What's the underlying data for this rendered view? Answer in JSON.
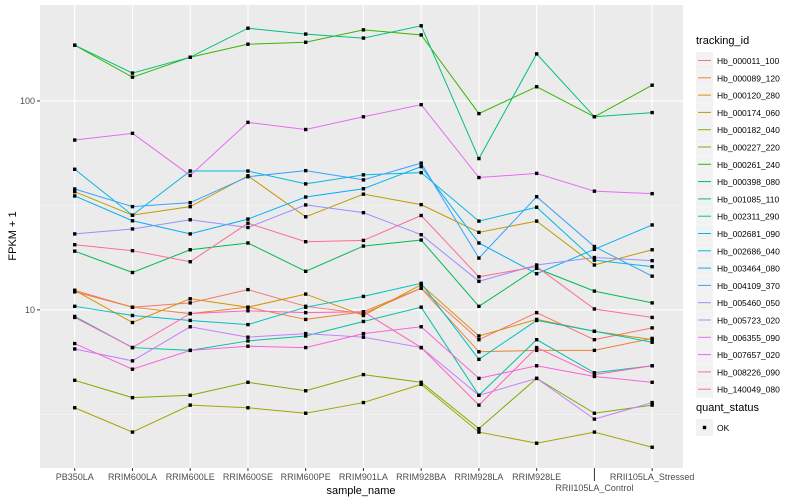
{
  "chart_data": {
    "type": "line",
    "title": "",
    "xlabel": "sample_name",
    "ylabel": "FPKM + 1",
    "y_scale": "log10",
    "ylim": [
      1.75,
      288
    ],
    "y_ticks": [
      10,
      100
    ],
    "y_tick_labels": [
      "10",
      "100"
    ],
    "grid": true,
    "legend_position": "right",
    "legend_title": "tracking_id",
    "shape_legend_title": "quant_status",
    "shape_legend_items": [
      "OK"
    ],
    "categories": [
      "PB350LA",
      "RRIM600LA",
      "RRIM600LE",
      "RRIM600SE",
      "RRIM600PE",
      "RRIM901LA",
      "RRIM928BA",
      "RRIM928LA",
      "RRIM928LE",
      "RRII105LA_Control",
      "RRII105LA_Stressed"
    ],
    "series": [
      {
        "name": "Hb_000011_100",
        "color": "#F8766D",
        "values": [
          12.4,
          10.3,
          10.8,
          12.5,
          10.4,
          9.6,
          12.7,
          7.2,
          9.7,
          7.2,
          8.2
        ]
      },
      {
        "name": "Hb_000089_120",
        "color": "#EA8331",
        "values": [
          12.2,
          10.3,
          9.6,
          10.3,
          9.0,
          9.8,
          12.7,
          6.3,
          6.4,
          6.4,
          7.3
        ]
      },
      {
        "name": "Hb_000120_280",
        "color": "#D89000",
        "values": [
          12.4,
          8.7,
          11.3,
          10.3,
          11.9,
          9.4,
          13.2,
          7.5,
          9.0,
          7.9,
          7.2
        ]
      },
      {
        "name": "Hb_000174_060",
        "color": "#C09B00",
        "values": [
          36.8,
          28.4,
          31.2,
          43.8,
          27.9,
          35.8,
          31.9,
          23.5,
          26.6,
          16.4,
          19.4
        ]
      },
      {
        "name": "Hb_000182_040",
        "color": "#A3A500",
        "values": [
          3.4,
          2.6,
          3.5,
          3.4,
          3.2,
          3.6,
          4.4,
          2.6,
          2.3,
          2.6,
          2.2
        ]
      },
      {
        "name": "Hb_000227_220",
        "color": "#7CAE00",
        "values": [
          4.6,
          3.8,
          3.9,
          4.5,
          4.1,
          4.9,
          4.5,
          2.7,
          4.7,
          3.2,
          3.5
        ]
      },
      {
        "name": "Hb_000261_240",
        "color": "#39B600",
        "values": [
          185,
          130,
          162,
          187,
          191,
          219,
          207,
          87,
          117,
          84,
          119
        ]
      },
      {
        "name": "Hb_000398_080",
        "color": "#00BB4E",
        "values": [
          19.1,
          15.1,
          19.4,
          20.9,
          15.3,
          20.2,
          21.6,
          10.4,
          15.8,
          12.3,
          10.8
        ]
      },
      {
        "name": "Hb_001085_110",
        "color": "#00BF7D",
        "values": [
          185,
          136,
          162,
          223,
          209,
          200,
          229,
          53,
          168,
          84,
          88
        ]
      },
      {
        "name": "Hb_002311_290",
        "color": "#00C1A3",
        "values": [
          9.3,
          6.6,
          6.4,
          7.1,
          7.5,
          8.8,
          10.3,
          3.9,
          7.2,
          5.0,
          5.4
        ]
      },
      {
        "name": "Hb_002681_090",
        "color": "#00BFC4",
        "values": [
          10.4,
          9.4,
          8.9,
          8.5,
          10.3,
          11.6,
          13.4,
          5.8,
          8.9,
          7.9,
          7.0
        ]
      },
      {
        "name": "Hb_002686_040",
        "color": "#00BAE0",
        "values": [
          47.1,
          28.4,
          46.2,
          46.2,
          40.1,
          44.3,
          45.4,
          26.6,
          31.0,
          17.3,
          16.1
        ]
      },
      {
        "name": "Hb_003464_080",
        "color": "#00B0F6",
        "values": [
          35.1,
          26.7,
          23.1,
          27.2,
          34.7,
          38.0,
          48.5,
          20.9,
          14.9,
          19.5,
          25.5
        ]
      },
      {
        "name": "Hb_004109_370",
        "color": "#35A2FF",
        "values": [
          37.9,
          31.2,
          32.6,
          43.4,
          46.4,
          41.9,
          50.4,
          17.7,
          34.8,
          20.1,
          14.5
        ]
      },
      {
        "name": "Hb_005460_050",
        "color": "#9590FF",
        "values": [
          23.1,
          24.4,
          27.0,
          24.8,
          31.8,
          29.2,
          22.9,
          13.7,
          16.4,
          17.8,
          17.2
        ]
      },
      {
        "name": "Hb_005723_020",
        "color": "#C77CFF",
        "values": [
          6.5,
          5.7,
          8.3,
          7.4,
          7.7,
          7.4,
          6.6,
          3.9,
          4.7,
          3.0,
          3.6
        ]
      },
      {
        "name": "Hb_006355_090",
        "color": "#E76BF3",
        "values": [
          65,
          70,
          44,
          79,
          73,
          84,
          96,
          43,
          45,
          37,
          36
        ]
      },
      {
        "name": "Hb_007657_020",
        "color": "#FA62DB",
        "values": [
          6.9,
          5.2,
          6.4,
          6.7,
          6.6,
          7.7,
          8.3,
          4.7,
          5.4,
          4.8,
          4.5
        ]
      },
      {
        "name": "Hb_008226_090",
        "color": "#FF62BC",
        "values": [
          9.2,
          6.6,
          9.6,
          9.9,
          9.7,
          9.8,
          6.6,
          3.5,
          6.6,
          4.9,
          5.4
        ]
      },
      {
        "name": "Hb_140049_080",
        "color": "#FF6C91",
        "values": [
          20.5,
          19.2,
          17.0,
          26.0,
          21.2,
          21.5,
          28.3,
          14.4,
          16.1,
          10.1,
          9.2
        ]
      }
    ]
  }
}
